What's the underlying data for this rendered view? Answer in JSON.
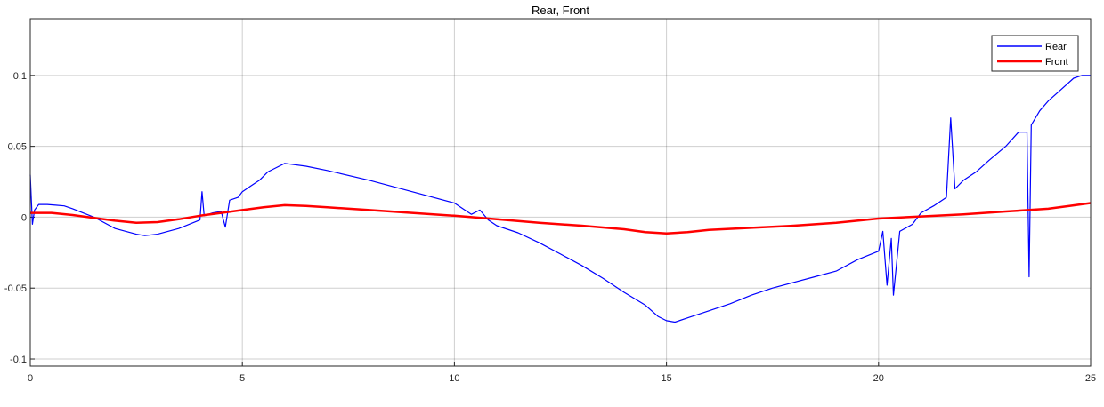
{
  "chart_data": {
    "type": "line",
    "title": "Rear, Front",
    "xlabel": "",
    "ylabel": "",
    "xlim": [
      0,
      25
    ],
    "ylim": [
      -0.105,
      0.14
    ],
    "xticks": [
      0,
      5,
      10,
      15,
      20,
      25
    ],
    "xtick_labels": [
      "0",
      "5",
      "10",
      "15",
      "20",
      "25"
    ],
    "yticks": [
      -0.1,
      -0.05,
      0,
      0.05,
      0.1
    ],
    "ytick_labels": [
      "-0.1",
      "-0.05",
      "0",
      "0.05",
      "0.1"
    ],
    "grid": true,
    "legend_position": "top-right",
    "series": [
      {
        "name": "Rear",
        "color": "#0000ff",
        "x": [
          0,
          0.05,
          0.1,
          0.2,
          0.4,
          0.6,
          0.8,
          1.0,
          1.5,
          2.0,
          2.5,
          2.7,
          3.0,
          3.5,
          4.0,
          4.05,
          4.1,
          4.3,
          4.5,
          4.6,
          4.7,
          4.9,
          5.0,
          5.2,
          5.4,
          5.6,
          5.8,
          6.0,
          6.5,
          7.0,
          8.0,
          9.0,
          10.0,
          10.2,
          10.4,
          10.6,
          10.8,
          11.0,
          11.5,
          12.0,
          12.5,
          13.0,
          13.5,
          14.0,
          14.5,
          14.8,
          15.0,
          15.2,
          15.5,
          16.0,
          16.5,
          17.0,
          17.5,
          18.0,
          18.5,
          19.0,
          19.5,
          20.0,
          20.1,
          20.2,
          20.3,
          20.35,
          20.5,
          20.8,
          21.0,
          21.3,
          21.6,
          21.7,
          21.8,
          22.0,
          22.3,
          22.6,
          23.0,
          23.3,
          23.5,
          23.55,
          23.6,
          23.8,
          24.0,
          24.3,
          24.6,
          24.8,
          25.0
        ],
        "y": [
          0.03,
          -0.005,
          0.005,
          0.009,
          0.009,
          0.0085,
          0.008,
          0.006,
          0.0,
          -0.008,
          -0.012,
          -0.013,
          -0.012,
          -0.008,
          -0.002,
          0.018,
          0.001,
          0.003,
          0.004,
          -0.007,
          0.012,
          0.014,
          0.018,
          0.022,
          0.026,
          0.032,
          0.035,
          0.038,
          0.036,
          0.033,
          0.026,
          0.018,
          0.01,
          0.006,
          0.002,
          0.005,
          -0.002,
          -0.006,
          -0.011,
          -0.018,
          -0.026,
          -0.034,
          -0.043,
          -0.053,
          -0.062,
          -0.07,
          -0.073,
          -0.074,
          -0.071,
          -0.066,
          -0.061,
          -0.055,
          -0.05,
          -0.046,
          -0.042,
          -0.038,
          -0.03,
          -0.024,
          -0.01,
          -0.048,
          -0.015,
          -0.055,
          -0.01,
          -0.005,
          0.003,
          0.008,
          0.014,
          0.07,
          0.02,
          0.026,
          0.032,
          0.04,
          0.05,
          0.06,
          0.06,
          -0.042,
          0.065,
          0.075,
          0.082,
          0.09,
          0.098,
          0.1,
          0.1
        ]
      },
      {
        "name": "Front",
        "color": "#ff0000",
        "x": [
          0,
          0.5,
          1.0,
          1.5,
          2.0,
          2.5,
          3.0,
          3.5,
          4.0,
          4.5,
          5.0,
          5.5,
          6.0,
          6.5,
          7.0,
          8.0,
          9.0,
          10.0,
          11.0,
          12.0,
          13.0,
          14.0,
          14.5,
          15.0,
          15.5,
          16.0,
          17.0,
          18.0,
          19.0,
          20.0,
          21.0,
          22.0,
          23.0,
          24.0,
          24.5,
          25.0
        ],
        "y": [
          0.003,
          0.003,
          0.0015,
          -0.0005,
          -0.0025,
          -0.004,
          -0.0035,
          -0.0015,
          0.001,
          0.003,
          0.005,
          0.007,
          0.0085,
          0.008,
          0.007,
          0.005,
          0.003,
          0.001,
          -0.0015,
          -0.004,
          -0.006,
          -0.0085,
          -0.0105,
          -0.0115,
          -0.0105,
          -0.009,
          -0.0075,
          -0.006,
          -0.004,
          -0.001,
          0.0005,
          0.002,
          0.004,
          0.006,
          0.008,
          0.01
        ]
      }
    ]
  }
}
